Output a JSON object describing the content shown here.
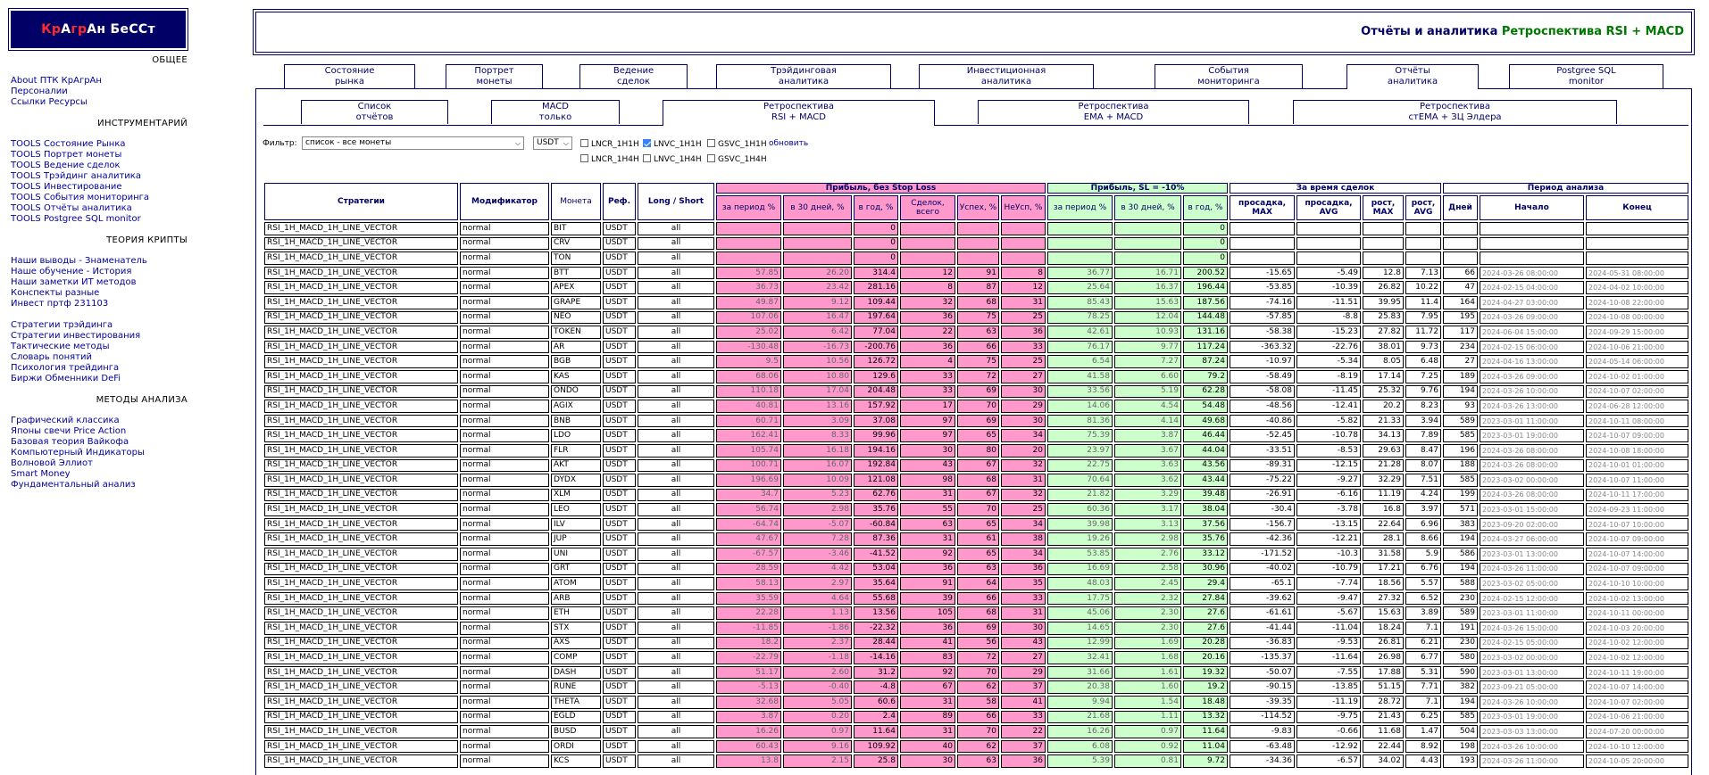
{
  "logo": {
    "p1": "К",
    "p2": "р",
    "p3": "А",
    "p4": "гр",
    "p5": "А",
    "p6": "н БеССт"
  },
  "sidebar": {
    "general_title": "ОБЩЕЕ",
    "general": [
      "About ПТК КрАгрАн",
      "Персоналии",
      "Ссылки Ресурсы"
    ],
    "tools_title": "ИНСТРУМЕНТАРИЙ",
    "tools": [
      "TOOLS Состояние Рынка",
      "TOOLS Портрет монеты",
      "TOOLS Ведение сделок",
      "TOOLS Трэйдинг аналитика",
      "TOOLS Инвестирование",
      "TOOLS События мониторинга",
      "TOOLS Отчёты аналитика",
      "TOOLS Postgree SQL monitor"
    ],
    "theory_title": "ТЕОРИЯ КРИПТЫ",
    "theory": [
      "Наши выводы - Знаменатель",
      "Наше обучение - История",
      "Наши заметки ИТ методов",
      "Конспекты разные",
      "Инвест пртф 231103"
    ],
    "strategy": [
      "Стратегии трэйдинга",
      "Стратегии инвестирования",
      "Тактические методы",
      "Словарь понятий",
      "Психология трейдинга",
      "Биржи Обменники DeFi"
    ],
    "methods_title": "МЕТОДЫ АНАЛИЗА",
    "methods": [
      "Графический классика",
      "Японы свечи Price Action",
      "Базовая теория Вайкофа",
      "Компьютерный Индикаторы",
      "Волновой Эллиот",
      "Smart Money",
      "Фундаментальный анализ"
    ]
  },
  "header": {
    "title": "Отчёты и аналитика",
    "subtitle": "Ретроспектива RSI + MACD"
  },
  "tabs": [
    {
      "l1": "Состояние",
      "l2": "рынка"
    },
    {
      "l1": "Портрет",
      "l2": "монеты"
    },
    {
      "l1": "Ведение",
      "l2": "сделок"
    },
    {
      "l1": "Трэйдинговая",
      "l2": "аналитика"
    },
    {
      "l1": "Инвестиционная",
      "l2": "аналитика"
    },
    {
      "l1": "События",
      "l2": "мониторинга"
    },
    {
      "l1": "Отчёты",
      "l2": "аналитика"
    },
    {
      "l1": "Postgree SQL",
      "l2": "monitor"
    }
  ],
  "subtabs": [
    {
      "l1": "Список",
      "l2": "отчётов"
    },
    {
      "l1": "MACD",
      "l2": "только"
    },
    {
      "l1": "Ретроспектива",
      "l2": "RSI + MACD"
    },
    {
      "l1": "Ретроспектива",
      "l2": "EMA + MACD"
    },
    {
      "l1": "Ретроспектива",
      "l2": "стEMA + ЗЦ Элдера"
    }
  ],
  "filter": {
    "label": "Фильтр:",
    "coin_select": "список - все монеты",
    "quote_select": "USDT",
    "cb": [
      {
        "label": "LNCR_1H1H",
        "checked": false
      },
      {
        "label": "LNVC_1H1H",
        "checked": true
      },
      {
        "label": "GSVC_1H1H",
        "checked": false
      },
      {
        "label": "LNCR_1H4H",
        "checked": false
      },
      {
        "label": "LNVC_1H4H",
        "checked": false
      },
      {
        "label": "GSVC_1H4H",
        "checked": false
      }
    ],
    "refresh": "обновить"
  },
  "table": {
    "group": {
      "profit_nosl": "Прибыль, без Stop Loss",
      "profit_sl": "Прибыль, SL = -10%",
      "during": "За время сделок",
      "period": "Период анализа"
    },
    "h": {
      "strategy": "Стратегии",
      "modifier": "Модификатор",
      "coin": "Монета",
      "ref": "Реф.",
      "ls": "Long / Short",
      "p_period": "за период %",
      "p_30": "в 30 дней, %",
      "p_year": "в год, %",
      "deals": "Сделок, всего",
      "succ": "Успех, %",
      "fail": "НеУсп, %",
      "s_period": "за период %",
      "s_30": "в 30 дней, %",
      "s_year": "в год, %",
      "dd_max": "просадка, MAX",
      "dd_avg": "просадка, AVG",
      "g_max": "рост, MAX",
      "g_avg": "рост, AVG",
      "days": "Дней",
      "start": "Начало",
      "end": "Конец"
    },
    "rows": [
      [
        "RSI_1H_MACD_1H_LINE_VECTOR",
        "normal",
        "BIT",
        "USDT",
        "all",
        "",
        "",
        "0",
        "",
        "",
        "",
        "",
        "",
        "0",
        "",
        "",
        "",
        "",
        "",
        "",
        ""
      ],
      [
        "RSI_1H_MACD_1H_LINE_VECTOR",
        "normal",
        "CRV",
        "USDT",
        "all",
        "",
        "",
        "0",
        "",
        "",
        "",
        "",
        "",
        "0",
        "",
        "",
        "",
        "",
        "",
        "",
        ""
      ],
      [
        "RSI_1H_MACD_1H_LINE_VECTOR",
        "normal",
        "TON",
        "USDT",
        "all",
        "",
        "",
        "0",
        "",
        "",
        "",
        "",
        "",
        "0",
        "",
        "",
        "",
        "",
        "",
        "",
        ""
      ],
      [
        "RSI_1H_MACD_1H_LINE_VECTOR",
        "normal",
        "BTT",
        "USDT",
        "all",
        "57.85",
        "26.20",
        "314.4",
        "12",
        "91",
        "8",
        "36.77",
        "16.71",
        "200.52",
        "-15.65",
        "-5.49",
        "12.8",
        "7.13",
        "66",
        "2024-03-26 08:00:00",
        "2024-05-31 08:00:00"
      ],
      [
        "RSI_1H_MACD_1H_LINE_VECTOR",
        "normal",
        "APEX",
        "USDT",
        "all",
        "36.73",
        "23.42",
        "281.16",
        "8",
        "87",
        "12",
        "25.64",
        "16.37",
        "196.44",
        "-53.85",
        "-10.39",
        "26.82",
        "10.22",
        "47",
        "2024-02-15 04:00:00",
        "2024-04-02 10:00:00"
      ],
      [
        "RSI_1H_MACD_1H_LINE_VECTOR",
        "normal",
        "GRAPE",
        "USDT",
        "all",
        "49.87",
        "9.12",
        "109.44",
        "32",
        "68",
        "31",
        "85.43",
        "15.63",
        "187.56",
        "-74.16",
        "-11.51",
        "39.95",
        "11.4",
        "164",
        "2024-04-27 03:00:00",
        "2024-10-08 22:00:00"
      ],
      [
        "RSI_1H_MACD_1H_LINE_VECTOR",
        "normal",
        "NEO",
        "USDT",
        "all",
        "107.06",
        "16.47",
        "197.64",
        "36",
        "75",
        "25",
        "78.25",
        "12.04",
        "144.48",
        "-57.85",
        "-8.8",
        "25.83",
        "7.95",
        "195",
        "2024-03-26 09:00:00",
        "2024-10-08 00:00:00"
      ],
      [
        "RSI_1H_MACD_1H_LINE_VECTOR",
        "normal",
        "TOKEN",
        "USDT",
        "all",
        "25.02",
        "6.42",
        "77.04",
        "22",
        "63",
        "36",
        "42.61",
        "10.93",
        "131.16",
        "-58.38",
        "-15.23",
        "27.82",
        "11.72",
        "117",
        "2024-06-04 15:00:00",
        "2024-09-29 15:00:00"
      ],
      [
        "RSI_1H_MACD_1H_LINE_VECTOR",
        "normal",
        "AR",
        "USDT",
        "all",
        "-130.48",
        "-16.73",
        "-200.76",
        "36",
        "66",
        "33",
        "76.17",
        "9.77",
        "117.24",
        "-363.32",
        "-22.76",
        "38.01",
        "9.73",
        "234",
        "2024-02-15 06:00:00",
        "2024-10-06 21:00:00"
      ],
      [
        "RSI_1H_MACD_1H_LINE_VECTOR",
        "normal",
        "BGB",
        "USDT",
        "all",
        "9.5",
        "10.56",
        "126.72",
        "4",
        "75",
        "25",
        "6.54",
        "7.27",
        "87.24",
        "-10.97",
        "-5.34",
        "8.05",
        "6.48",
        "27",
        "2024-04-16 13:00:00",
        "2024-05-14 06:00:00"
      ],
      [
        "RSI_1H_MACD_1H_LINE_VECTOR",
        "normal",
        "KAS",
        "USDT",
        "all",
        "68.06",
        "10.80",
        "129.6",
        "33",
        "72",
        "27",
        "41.58",
        "6.60",
        "79.2",
        "-58.49",
        "-8.19",
        "17.14",
        "7.25",
        "189",
        "2024-03-26 09:00:00",
        "2024-10-02 01:00:00"
      ],
      [
        "RSI_1H_MACD_1H_LINE_VECTOR",
        "normal",
        "ONDO",
        "USDT",
        "all",
        "110.18",
        "17.04",
        "204.48",
        "33",
        "69",
        "30",
        "33.56",
        "5.19",
        "62.28",
        "-58.08",
        "-11.45",
        "25.32",
        "9.76",
        "194",
        "2024-03-26 10:00:00",
        "2024-10-07 02:00:00"
      ],
      [
        "RSI_1H_MACD_1H_LINE_VECTOR",
        "normal",
        "AGIX",
        "USDT",
        "all",
        "40.81",
        "13.16",
        "157.92",
        "17",
        "70",
        "29",
        "14.06",
        "4.54",
        "54.48",
        "-48.56",
        "-12.41",
        "20.2",
        "8.23",
        "93",
        "2024-03-26 13:00:00",
        "2024-06-28 12:00:00"
      ],
      [
        "RSI_1H_MACD_1H_LINE_VECTOR",
        "normal",
        "BNB",
        "USDT",
        "all",
        "60.71",
        "3.09",
        "37.08",
        "97",
        "69",
        "30",
        "81.36",
        "4.14",
        "49.68",
        "-40.86",
        "-5.82",
        "21.33",
        "3.94",
        "589",
        "2023-03-01 11:00:00",
        "2024-10-11 08:00:00"
      ],
      [
        "RSI_1H_MACD_1H_LINE_VECTOR",
        "normal",
        "LDO",
        "USDT",
        "all",
        "162.41",
        "8.33",
        "99.96",
        "97",
        "65",
        "34",
        "75.39",
        "3.87",
        "46.44",
        "-52.45",
        "-10.78",
        "34.13",
        "7.89",
        "585",
        "2023-03-01 19:00:00",
        "2024-10-07 09:00:00"
      ],
      [
        "RSI_1H_MACD_1H_LINE_VECTOR",
        "normal",
        "FLR",
        "USDT",
        "all",
        "105.74",
        "16.18",
        "194.16",
        "30",
        "80",
        "20",
        "23.97",
        "3.67",
        "44.04",
        "-33.51",
        "-8.53",
        "29.63",
        "8.47",
        "196",
        "2024-03-26 08:00:00",
        "2024-10-08 18:00:00"
      ],
      [
        "RSI_1H_MACD_1H_LINE_VECTOR",
        "normal",
        "AKT",
        "USDT",
        "all",
        "100.71",
        "16.07",
        "192.84",
        "43",
        "67",
        "32",
        "22.75",
        "3.63",
        "43.56",
        "-89.31",
        "-12.15",
        "21.28",
        "8.07",
        "188",
        "2024-03-26 08:00:00",
        "2024-10-01 01:00:00"
      ],
      [
        "RSI_1H_MACD_1H_LINE_VECTOR",
        "normal",
        "DYDX",
        "USDT",
        "all",
        "196.69",
        "10.09",
        "121.08",
        "98",
        "68",
        "31",
        "70.64",
        "3.62",
        "43.44",
        "-75.22",
        "-9.27",
        "32.29",
        "7.51",
        "585",
        "2023-03-02 00:00:00",
        "2024-10-07 11:00:00"
      ],
      [
        "RSI_1H_MACD_1H_LINE_VECTOR",
        "normal",
        "XLM",
        "USDT",
        "all",
        "34.7",
        "5.23",
        "62.76",
        "31",
        "67",
        "32",
        "21.82",
        "3.29",
        "39.48",
        "-26.91",
        "-6.16",
        "11.19",
        "4.24",
        "199",
        "2024-03-26 08:00:00",
        "2024-10-11 17:00:00"
      ],
      [
        "RSI_1H_MACD_1H_LINE_VECTOR",
        "normal",
        "LEO",
        "USDT",
        "all",
        "56.74",
        "2.98",
        "35.76",
        "55",
        "70",
        "25",
        "60.36",
        "3.17",
        "38.04",
        "-30.4",
        "-3.78",
        "16.8",
        "3.97",
        "571",
        "2023-03-01 15:00:00",
        "2024-09-23 11:00:00"
      ],
      [
        "RSI_1H_MACD_1H_LINE_VECTOR",
        "normal",
        "ILV",
        "USDT",
        "all",
        "-64.74",
        "-5.07",
        "-60.84",
        "63",
        "65",
        "34",
        "39.98",
        "3.13",
        "37.56",
        "-156.7",
        "-13.15",
        "22.64",
        "6.96",
        "383",
        "2023-09-20 02:00:00",
        "2024-10-07 10:00:00"
      ],
      [
        "RSI_1H_MACD_1H_LINE_VECTOR",
        "normal",
        "JUP",
        "USDT",
        "all",
        "47.67",
        "7.28",
        "87.36",
        "31",
        "61",
        "38",
        "19.26",
        "2.98",
        "35.76",
        "-42.36",
        "-12.21",
        "28.1",
        "8.66",
        "194",
        "2024-03-27 06:00:00",
        "2024-10-07 09:00:00"
      ],
      [
        "RSI_1H_MACD_1H_LINE_VECTOR",
        "normal",
        "UNI",
        "USDT",
        "all",
        "-67.57",
        "-3.46",
        "-41.52",
        "92",
        "65",
        "34",
        "53.85",
        "2.76",
        "33.12",
        "-171.52",
        "-10.3",
        "31.58",
        "5.9",
        "586",
        "2023-03-01 13:00:00",
        "2024-10-07 14:00:00"
      ],
      [
        "RSI_1H_MACD_1H_LINE_VECTOR",
        "normal",
        "GRT",
        "USDT",
        "all",
        "28.59",
        "4.42",
        "53.04",
        "36",
        "63",
        "36",
        "16.69",
        "2.58",
        "30.96",
        "-40.02",
        "-10.79",
        "17.21",
        "6.76",
        "194",
        "2024-03-26 11:00:00",
        "2024-10-07 09:00:00"
      ],
      [
        "RSI_1H_MACD_1H_LINE_VECTOR",
        "normal",
        "ATOM",
        "USDT",
        "all",
        "58.13",
        "2.97",
        "35.64",
        "91",
        "64",
        "35",
        "48.03",
        "2.45",
        "29.4",
        "-65.1",
        "-7.74",
        "18.56",
        "5.57",
        "588",
        "2023-03-02 05:00:00",
        "2024-10-10 10:00:00"
      ],
      [
        "RSI_1H_MACD_1H_LINE_VECTOR",
        "normal",
        "ARB",
        "USDT",
        "all",
        "35.59",
        "4.64",
        "55.68",
        "39",
        "66",
        "33",
        "17.75",
        "2.32",
        "27.84",
        "-39.62",
        "-9.47",
        "27.32",
        "6.52",
        "230",
        "2024-02-15 12:00:00",
        "2024-10-02 13:00:00"
      ],
      [
        "RSI_1H_MACD_1H_LINE_VECTOR",
        "normal",
        "ETH",
        "USDT",
        "all",
        "22.28",
        "1.13",
        "13.56",
        "105",
        "68",
        "31",
        "45.06",
        "2.30",
        "27.6",
        "-61.61",
        "-5.67",
        "15.63",
        "3.89",
        "589",
        "2023-03-01 11:00:00",
        "2024-10-11 00:00:00"
      ],
      [
        "RSI_1H_MACD_1H_LINE_VECTOR",
        "normal",
        "STX",
        "USDT",
        "all",
        "-11.85",
        "-1.86",
        "-22.32",
        "36",
        "69",
        "30",
        "14.65",
        "2.30",
        "27.6",
        "-41.44",
        "-11.04",
        "18.24",
        "7.1",
        "191",
        "2024-03-26 15:00:00",
        "2024-10-03 20:00:00"
      ],
      [
        "RSI_1H_MACD_1H_LINE_VECTOR",
        "normal",
        "AXS",
        "USDT",
        "all",
        "18.2",
        "2.37",
        "28.44",
        "41",
        "56",
        "43",
        "12.99",
        "1.69",
        "20.28",
        "-36.83",
        "-9.53",
        "26.81",
        "6.21",
        "230",
        "2024-02-15 05:00:00",
        "2024-10-02 12:00:00"
      ],
      [
        "RSI_1H_MACD_1H_LINE_VECTOR",
        "normal",
        "COMP",
        "USDT",
        "all",
        "-22.79",
        "-1.18",
        "-14.16",
        "83",
        "72",
        "27",
        "32.41",
        "1.68",
        "20.16",
        "-135.37",
        "-11.64",
        "26.98",
        "6.77",
        "580",
        "2023-03-02 00:00:00",
        "2024-10-02 12:00:00"
      ],
      [
        "RSI_1H_MACD_1H_LINE_VECTOR",
        "normal",
        "DASH",
        "USDT",
        "all",
        "51.17",
        "2.60",
        "31.2",
        "92",
        "70",
        "29",
        "31.66",
        "1.61",
        "19.32",
        "-50.07",
        "-7.55",
        "17.88",
        "5.31",
        "590",
        "2023-03-01 13:00:00",
        "2024-10-11 19:00:00"
      ],
      [
        "RSI_1H_MACD_1H_LINE_VECTOR",
        "normal",
        "RUNE",
        "USDT",
        "all",
        "-5.13",
        "-0.40",
        "-4.8",
        "67",
        "62",
        "37",
        "20.38",
        "1.60",
        "19.2",
        "-90.15",
        "-13.85",
        "51.15",
        "7.71",
        "382",
        "2023-09-21 05:00:00",
        "2024-10-07 14:00:00"
      ],
      [
        "RSI_1H_MACD_1H_LINE_VECTOR",
        "normal",
        "THETA",
        "USDT",
        "all",
        "32.68",
        "5.05",
        "60.6",
        "31",
        "58",
        "41",
        "9.94",
        "1.54",
        "18.48",
        "-39.35",
        "-11.19",
        "28.72",
        "7.1",
        "194",
        "2024-03-26 10:00:00",
        "2024-10-07 02:00:00"
      ],
      [
        "RSI_1H_MACD_1H_LINE_VECTOR",
        "normal",
        "EGLD",
        "USDT",
        "all",
        "3.87",
        "0.20",
        "2.4",
        "89",
        "66",
        "33",
        "21.68",
        "1.11",
        "13.32",
        "-114.52",
        "-9.75",
        "21.43",
        "6.25",
        "585",
        "2023-03-01 19:00:00",
        "2024-10-06 21:00:00"
      ],
      [
        "RSI_1H_MACD_1H_LINE_VECTOR",
        "normal",
        "BUSD",
        "USDT",
        "all",
        "16.26",
        "0.97",
        "11.64",
        "31",
        "70",
        "22",
        "16.26",
        "0.97",
        "11.64",
        "-9.83",
        "-0.66",
        "11.68",
        "1.47",
        "504",
        "2023-03-03 13:00:00",
        "2024-07-20 00:00:00"
      ],
      [
        "RSI_1H_MACD_1H_LINE_VECTOR",
        "normal",
        "ORDI",
        "USDT",
        "all",
        "60.43",
        "9.16",
        "109.92",
        "40",
        "62",
        "37",
        "6.08",
        "0.92",
        "11.04",
        "-63.48",
        "-12.92",
        "22.44",
        "8.92",
        "198",
        "2024-03-26 10:00:00",
        "2024-10-10 12:00:00"
      ],
      [
        "RSI_1H_MACD_1H_LINE_VECTOR",
        "normal",
        "KCS",
        "USDT",
        "all",
        "13.8",
        "2.15",
        "25.8",
        "30",
        "63",
        "36",
        "5.39",
        "0.81",
        "9.72",
        "-34.36",
        "-6.57",
        "34.02",
        "4.43",
        "193",
        "2024-03-26 11:00:00",
        "2024-10-05 20:00:00"
      ]
    ]
  }
}
